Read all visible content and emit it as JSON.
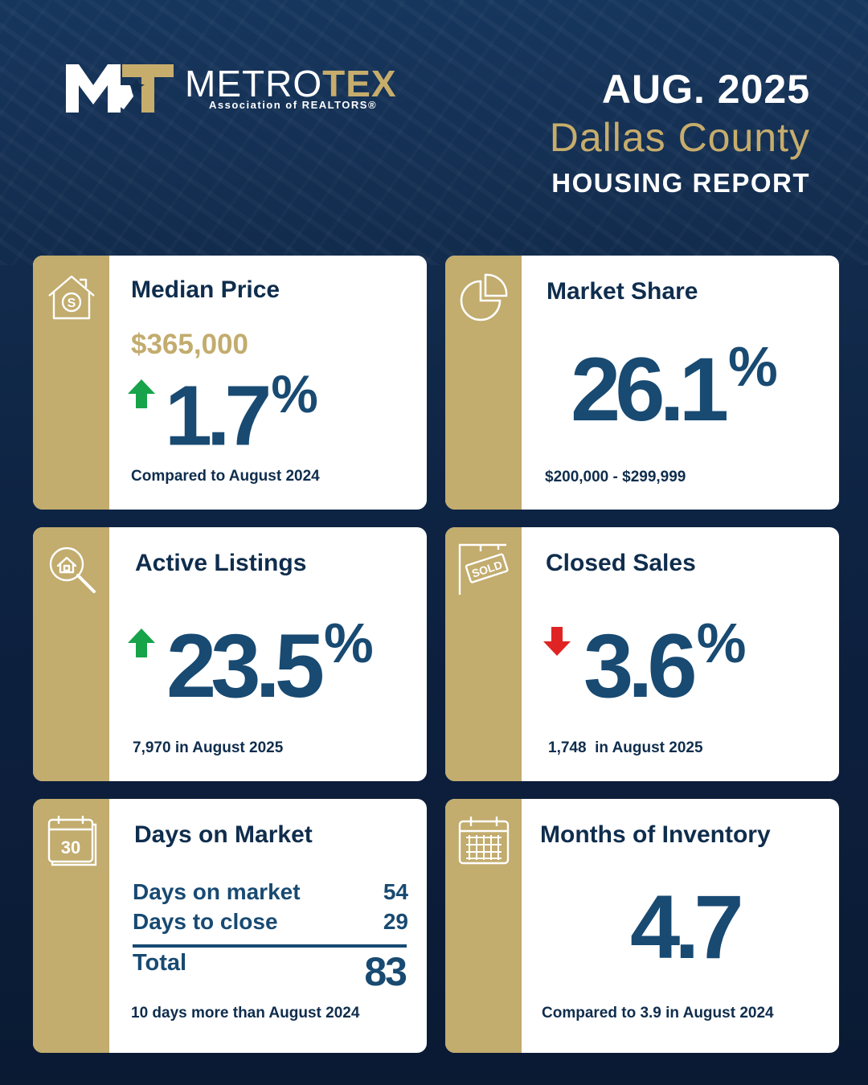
{
  "brand": {
    "word_primary": "METRO",
    "word_accent": "TEX",
    "subtitle": "Association of REALTORS®",
    "colors": {
      "navy": "#0f2d4d",
      "gold": "#c2ac6e",
      "blue": "#184a72",
      "up": "#16a34a",
      "down": "#e02424"
    }
  },
  "header": {
    "date": "AUG. 2025",
    "county": "Dallas County",
    "report": "HOUSING REPORT"
  },
  "cards": {
    "median_price": {
      "title": "Median Price",
      "price": "$365,000",
      "change": "1.7",
      "unit": "%",
      "direction": "up",
      "footnote": "Compared to August 2024",
      "icon": "house-dollar-icon"
    },
    "market_share": {
      "title": "Market Share",
      "value": "26.1",
      "unit": "%",
      "footnote": "$200,000 - $299,999",
      "icon": "pie-chart-icon"
    },
    "active_listings": {
      "title": "Active Listings",
      "change": "23.5",
      "unit": "%",
      "direction": "up",
      "footnote": "7,970 in August 2025",
      "icon": "house-search-icon"
    },
    "closed_sales": {
      "title": "Closed Sales",
      "change": "3.6",
      "unit": "%",
      "direction": "down",
      "footnote": "1,748  in August 2025",
      "icon": "sold-sign-icon"
    },
    "days_on_market": {
      "title": "Days on Market",
      "icon_number": "30",
      "rows": [
        {
          "label": "Days on market",
          "value": "54"
        },
        {
          "label": "Days to close",
          "value": "29"
        }
      ],
      "total_label": "Total",
      "total_value": "83",
      "footnote": "10 days more than August 2024",
      "icon": "calendar-30-icon"
    },
    "months_inventory": {
      "title": "Months of Inventory",
      "value": "4.7",
      "footnote": "Compared to 3.9 in August 2024",
      "icon": "calendar-grid-icon"
    }
  }
}
